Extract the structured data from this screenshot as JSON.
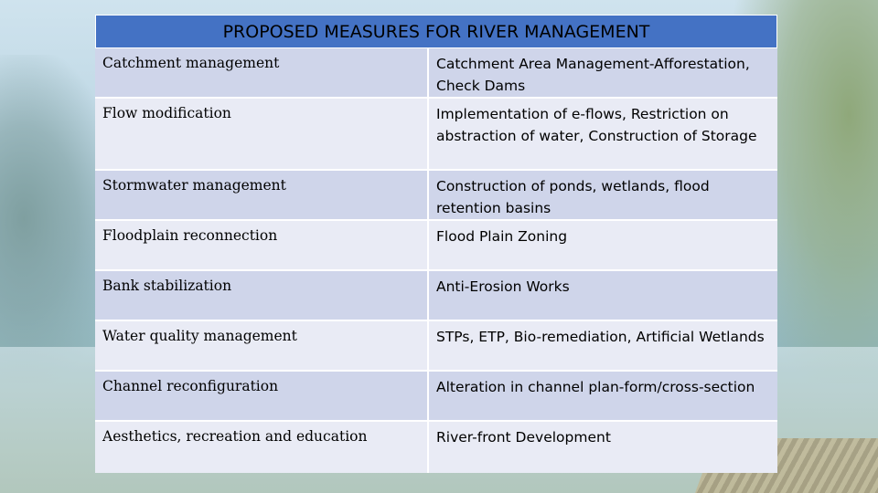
{
  "table": {
    "title": "PROPOSED MEASURES FOR RIVER MANAGEMENT",
    "rows": [
      {
        "measure": "Catchment management",
        "action": "Catchment Area Management-Afforestation, Check Dams"
      },
      {
        "measure": "Flow modification",
        "action": "Implementation of e-flows, Restriction on abstraction of water, Construction of Storage"
      },
      {
        "measure": "Stormwater management",
        "action": "Construction of ponds, wetlands, flood retention basins"
      },
      {
        "measure": "Floodplain reconnection",
        "action": "Flood Plain Zoning"
      },
      {
        "measure": "Bank stabilization",
        "action": "Anti-Erosion Works"
      },
      {
        "measure": "Water quality management",
        "action": "STPs, ETP, Bio-remediation, Artificial Wetlands"
      },
      {
        "measure": "Channel reconfiguration",
        "action": "Alteration in channel plan-form/cross-section"
      },
      {
        "measure": "Aesthetics, recreation and education",
        "action": "River-front Development"
      }
    ]
  }
}
